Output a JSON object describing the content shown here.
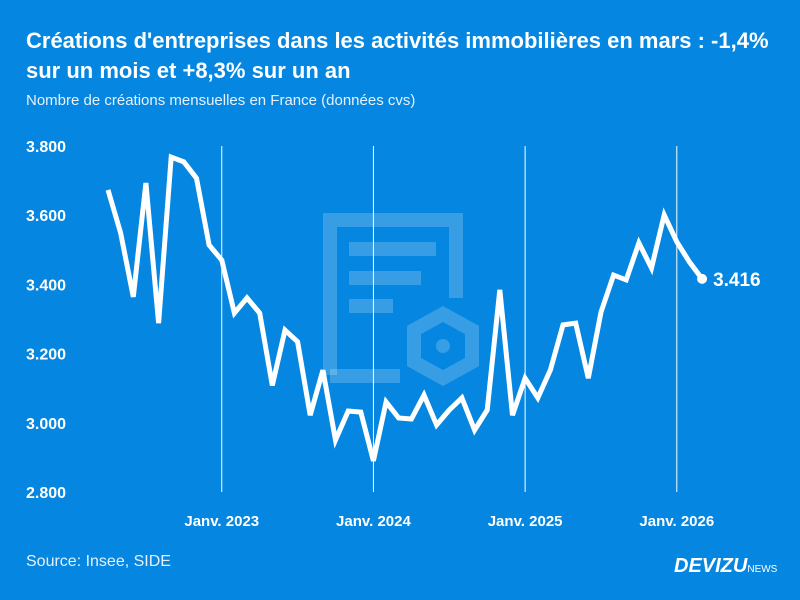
{
  "title": "Créations d'entreprises dans les activités immobilières en mars : -1,4% sur un mois et +8,3% sur un an",
  "subtitle": "Nombre de créations mensuelles en France (données cvs)",
  "source": "Source: Insee, SIDE",
  "logo": {
    "main": "DEVIZU",
    "suffix": "NEWS"
  },
  "colors": {
    "background": "#0586e0",
    "line": "#ffffff"
  },
  "chart_data": {
    "type": "line",
    "x_start": "2022-04",
    "x_end": "2026-03",
    "frequency": "monthly",
    "ylim": [
      2800,
      3800
    ],
    "yticks": [
      "3.800",
      "3.600",
      "3.400",
      "3.200",
      "3.000",
      "2.800"
    ],
    "ytick_values": [
      3800,
      3600,
      3400,
      3200,
      3000,
      2800
    ],
    "xticks": [
      "Janv. 2023",
      "Janv. 2024",
      "Janv. 2025",
      "Janv. 2026"
    ],
    "grid": "vertical lines at January",
    "last_label": "3.416",
    "values": [
      3673,
      3549,
      3364,
      3693,
      3288,
      3768,
      3754,
      3707,
      3514,
      3470,
      3317,
      3361,
      3317,
      3108,
      3268,
      3234,
      3022,
      3152,
      2950,
      3034,
      3031,
      2890,
      3060,
      3014,
      3011,
      3080,
      2994,
      3037,
      3072,
      2979,
      3037,
      3384,
      3022,
      3129,
      3072,
      3153,
      3283,
      3288,
      3129,
      3320,
      3427,
      3413,
      3520,
      3447,
      3601,
      3523,
      3465,
      3416
    ]
  }
}
